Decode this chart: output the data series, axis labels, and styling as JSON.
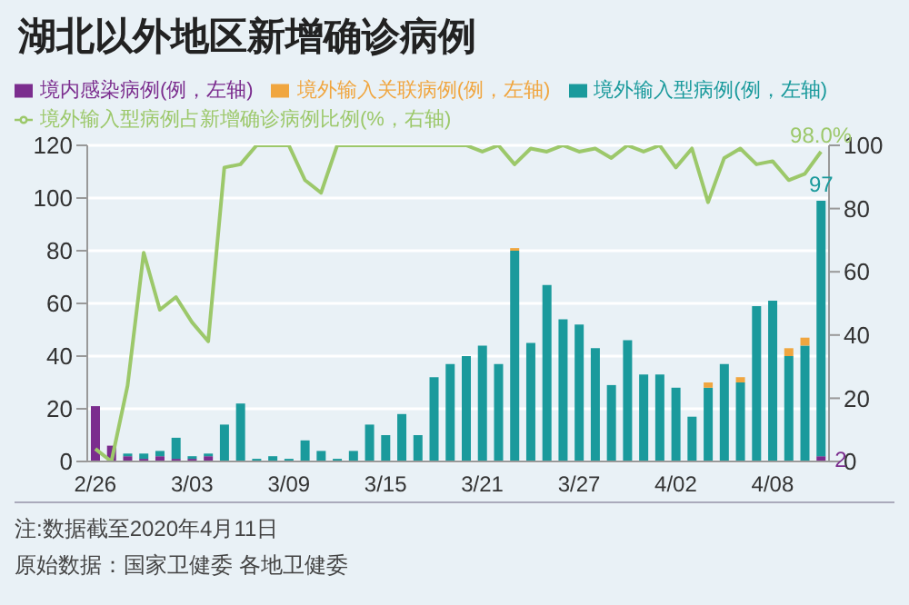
{
  "chart_data": {
    "type": "bar",
    "title": "湖北以外地区新增确诊病例",
    "stacked": true,
    "categories": [
      "2/26",
      null,
      null,
      null,
      null,
      null,
      "3/03",
      null,
      null,
      null,
      null,
      null,
      "3/09",
      null,
      null,
      null,
      null,
      null,
      "3/15",
      null,
      null,
      null,
      null,
      null,
      "3/21",
      null,
      null,
      null,
      null,
      null,
      "3/27",
      null,
      null,
      null,
      null,
      null,
      "4/02",
      null,
      null,
      null,
      null,
      null,
      "4/08",
      null,
      null,
      null
    ],
    "series": [
      {
        "name": "境内感染病例(例，左轴)",
        "color": "#7b2d8e",
        "values": [
          21,
          6,
          2,
          1,
          2,
          1,
          1,
          2,
          0,
          0,
          0,
          0,
          0,
          0,
          0,
          0,
          0,
          0,
          0,
          0,
          0,
          0,
          0,
          0,
          0,
          0,
          0,
          0,
          0,
          0,
          0,
          0,
          0,
          0,
          0,
          0,
          0,
          0,
          0,
          0,
          0,
          0,
          0,
          0,
          0,
          2
        ],
        "value_labels": [
          null,
          null,
          null,
          null,
          null,
          null,
          null,
          null,
          null,
          null,
          null,
          null,
          null,
          null,
          null,
          null,
          null,
          null,
          null,
          null,
          null,
          null,
          null,
          null,
          null,
          null,
          null,
          null,
          null,
          null,
          null,
          null,
          null,
          null,
          null,
          null,
          null,
          null,
          null,
          null,
          null,
          null,
          null,
          null,
          null,
          "2"
        ]
      },
      {
        "name": "境外输入型病例(例，左轴)",
        "color": "#1a9a9c",
        "values": [
          0,
          0,
          1,
          2,
          2,
          8,
          1,
          1,
          14,
          22,
          1,
          2,
          1,
          8,
          4,
          1,
          4,
          14,
          10,
          18,
          10,
          32,
          37,
          40,
          44,
          37,
          80,
          45,
          67,
          54,
          52,
          43,
          29,
          46,
          33,
          33,
          28,
          17,
          28,
          37,
          30,
          59,
          61,
          40,
          44,
          97
        ],
        "value_labels": [
          null,
          null,
          null,
          null,
          null,
          null,
          null,
          null,
          null,
          null,
          null,
          null,
          null,
          null,
          null,
          null,
          null,
          null,
          null,
          null,
          null,
          null,
          null,
          null,
          null,
          null,
          null,
          null,
          null,
          null,
          null,
          null,
          null,
          null,
          null,
          null,
          null,
          null,
          null,
          null,
          null,
          null,
          null,
          null,
          null,
          "97"
        ]
      },
      {
        "name": "境外输入关联病例(例，左轴)",
        "color": "#f0a640",
        "values": [
          0,
          0,
          0,
          0,
          0,
          0,
          0,
          0,
          0,
          0,
          0,
          0,
          0,
          0,
          0,
          0,
          0,
          0,
          0,
          0,
          0,
          0,
          0,
          0,
          0,
          0,
          1,
          0,
          0,
          0,
          0,
          0,
          0,
          0,
          0,
          0,
          0,
          0,
          2,
          0,
          2,
          0,
          0,
          3,
          3,
          0
        ]
      },
      {
        "name": "境外输入型病例占新增确诊病例比例(%，右轴)",
        "type": "line",
        "axis": "y2",
        "color": "#9cc86a",
        "values": [
          4,
          0,
          24,
          66,
          48,
          52,
          44,
          38,
          93,
          94,
          100,
          100,
          100,
          89,
          85,
          100,
          100,
          100,
          100,
          100,
          100,
          100,
          100,
          100,
          98,
          100,
          94,
          99,
          98,
          100,
          98,
          99,
          96,
          100,
          98,
          100,
          93,
          99,
          82,
          96,
          99,
          94,
          95,
          89,
          91,
          98
        ],
        "value_labels": [
          null,
          null,
          null,
          null,
          null,
          null,
          null,
          null,
          null,
          null,
          null,
          null,
          null,
          null,
          null,
          null,
          null,
          null,
          null,
          null,
          null,
          null,
          null,
          null,
          null,
          null,
          null,
          null,
          null,
          null,
          null,
          null,
          null,
          null,
          null,
          null,
          null,
          null,
          null,
          null,
          null,
          null,
          null,
          null,
          null,
          "98.0%"
        ]
      }
    ],
    "ylim": [
      0,
      120
    ],
    "yticks": [
      0,
      20,
      40,
      60,
      80,
      100,
      120
    ],
    "y2lim": [
      0,
      100
    ],
    "y2ticks": [
      0,
      20,
      40,
      60,
      80,
      100
    ],
    "grid": "y",
    "legend": "top left",
    "annotations": [
      "注:数据截至2020年4月11日",
      "原始数据：国家卫健委 各地卫健委"
    ]
  }
}
